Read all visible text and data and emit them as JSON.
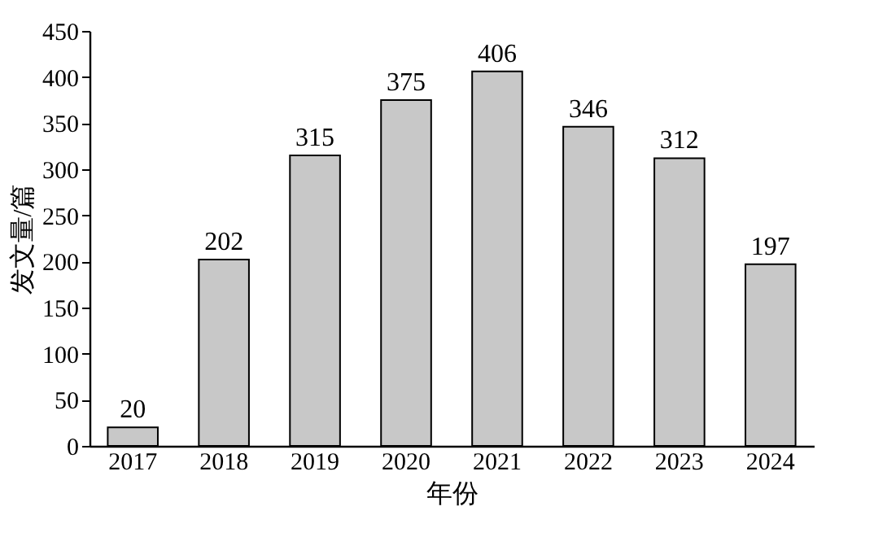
{
  "chart_data": {
    "type": "bar",
    "xlabel": "年份",
    "ylabel": "发文量/篇",
    "categories": [
      "2017",
      "2018",
      "2019",
      "2020",
      "2021",
      "2022",
      "2023",
      "2024"
    ],
    "values": [
      20,
      202,
      315,
      375,
      406,
      346,
      312,
      197
    ],
    "color": "#c8c8c8",
    "ylim": [
      0,
      450
    ],
    "yticks": [
      0,
      50,
      100,
      150,
      200,
      250,
      300,
      350,
      400,
      450
    ],
    "data_labels": true
  }
}
